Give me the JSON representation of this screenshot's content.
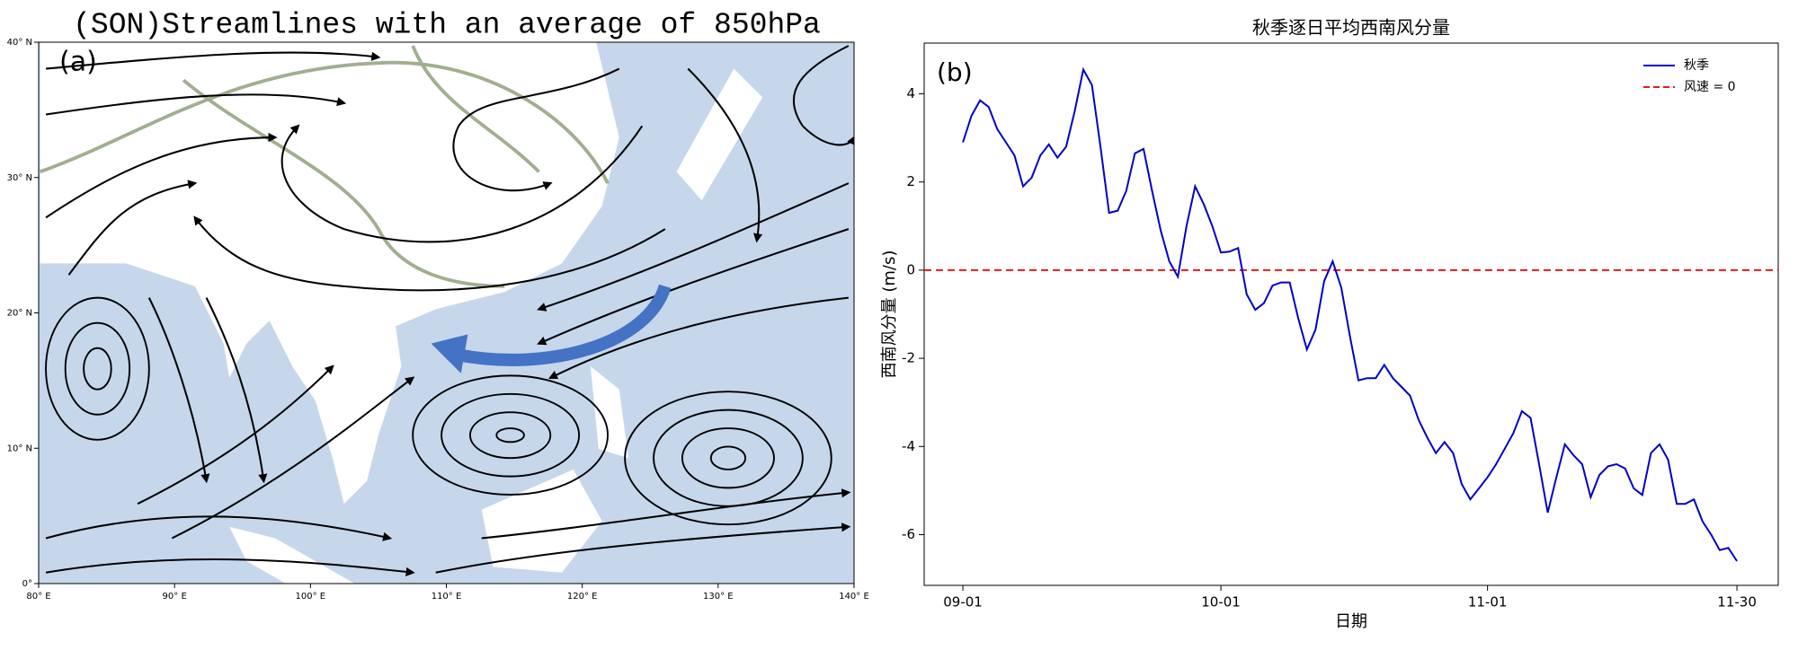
{
  "chart_data": [
    {
      "type": "map",
      "title": "(SON)Streamlines with an average of 850hPa",
      "panel_label": "(a)",
      "xlim": [
        80,
        140
      ],
      "ylim": [
        0,
        40
      ],
      "xticks": [
        {
          "value": 80,
          "label": "80° E"
        },
        {
          "value": 90,
          "label": "90° E"
        },
        {
          "value": 100,
          "label": "100° E"
        },
        {
          "value": 110,
          "label": "110° E"
        },
        {
          "value": 120,
          "label": "120° E"
        },
        {
          "value": 130,
          "label": "130° E"
        },
        {
          "value": 140,
          "label": "140° E"
        }
      ],
      "yticks": [
        {
          "value": 0,
          "label": "0°"
        },
        {
          "value": 10,
          "label": "10° N"
        },
        {
          "value": 20,
          "label": "20° N"
        },
        {
          "value": 30,
          "label": "30° N"
        },
        {
          "value": 40,
          "label": "40° N"
        }
      ]
    },
    {
      "type": "line",
      "title": "秋季逐日平均西南风分量",
      "panel_label": "(b)",
      "xlabel": "日期",
      "ylabel": "西南风分量 (m/s)",
      "x": [
        0,
        1,
        2,
        3,
        4,
        5,
        6,
        7,
        8,
        9,
        10,
        11,
        12,
        13,
        14,
        15,
        16,
        17,
        18,
        19,
        20,
        21,
        22,
        23,
        24,
        25,
        26,
        27,
        28,
        29,
        30,
        31,
        32,
        33,
        34,
        35,
        36,
        37,
        38,
        39,
        40,
        41,
        42,
        43,
        44,
        45,
        46,
        47,
        48,
        49,
        50,
        51,
        52,
        53,
        54,
        55,
        56,
        57,
        58,
        59,
        60,
        61,
        62,
        63,
        64,
        65,
        66,
        67,
        68,
        69,
        70,
        71,
        72,
        73,
        74,
        75,
        76,
        77,
        78,
        79,
        80,
        81,
        82,
        83,
        84,
        85,
        86,
        87,
        88,
        89,
        90
      ],
      "series": [
        {
          "name": "秋季",
          "color": "#0000cc",
          "values": [
            2.9,
            3.5,
            3.85,
            3.7,
            3.2,
            2.9,
            2.6,
            1.9,
            2.1,
            2.6,
            2.85,
            2.55,
            2.8,
            3.6,
            4.55,
            4.2,
            2.8,
            1.3,
            1.35,
            1.8,
            2.65,
            2.75,
            1.8,
            0.9,
            0.2,
            -0.15,
            1.0,
            1.9,
            1.5,
            1.0,
            0.4,
            0.42,
            0.5,
            -0.55,
            -0.9,
            -0.75,
            -0.35,
            -0.28,
            -0.28,
            -1.1,
            -1.8,
            -1.35,
            -0.25,
            0.2,
            -0.4,
            -1.5,
            -2.5,
            -2.45,
            -2.45,
            -2.15,
            -2.45,
            -2.65,
            -2.85,
            -3.4,
            -3.8,
            -4.15,
            -3.9,
            -4.15,
            -4.85,
            -5.2,
            -4.95,
            -4.7,
            -4.4,
            -4.05,
            -3.7,
            -3.2,
            -3.35,
            -4.4,
            -5.5,
            -4.7,
            -3.95,
            -4.2,
            -4.4,
            -5.15,
            -4.65,
            -4.45,
            -4.4,
            -4.5,
            -4.95,
            -5.1,
            -4.15,
            -3.95,
            -4.3,
            -5.3,
            -5.3,
            -5.2,
            -5.7,
            -6.0,
            -6.35,
            -6.3,
            -6.6
          ]
        }
      ],
      "hlines": [
        {
          "y": 0,
          "name": "风速 = 0",
          "color": "#e41a1c",
          "dashed": true
        }
      ],
      "xlim": [
        -4.5,
        94.8
      ],
      "ylim": [
        -7.15,
        5.15
      ],
      "xticks": [
        {
          "value": 0,
          "label": "09-01"
        },
        {
          "value": 30,
          "label": "10-01"
        },
        {
          "value": 61,
          "label": "11-01"
        },
        {
          "value": 90,
          "label": "11-30"
        }
      ],
      "yticks": [
        -6,
        -4,
        -2,
        0,
        2,
        4
      ],
      "legend": "upper right",
      "grid": false
    }
  ]
}
